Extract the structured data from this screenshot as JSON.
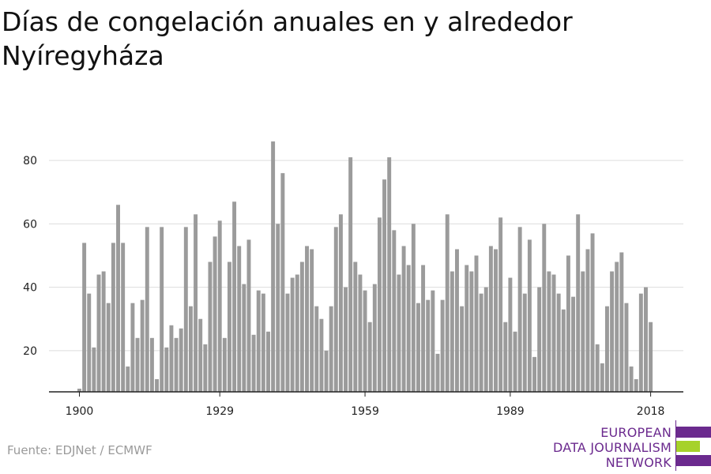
{
  "header": {
    "title": "Días de congelación anuales en y alrededor Nyíregyháza"
  },
  "footer": {
    "source": "Fuente: EDJNet / ECMWF",
    "logo_lines": [
      "EUROPEAN",
      "DATA JOURNALISM",
      "NETWORK"
    ]
  },
  "colors": {
    "bar": "#9b9b9b",
    "grid": "#dddddd",
    "axis": "#222222",
    "logo_purple": "#6b2a8e",
    "logo_green": "#a6d22a"
  },
  "chart_data": {
    "type": "bar",
    "title": "Días de congelación anuales en y alrededor Nyíregyháza",
    "xlabel": "",
    "ylabel": "",
    "x": [
      1900,
      1901,
      1902,
      1903,
      1904,
      1905,
      1906,
      1907,
      1908,
      1909,
      1910,
      1911,
      1912,
      1913,
      1914,
      1915,
      1916,
      1917,
      1918,
      1919,
      1920,
      1921,
      1922,
      1923,
      1924,
      1925,
      1926,
      1927,
      1928,
      1929,
      1930,
      1931,
      1932,
      1933,
      1934,
      1935,
      1936,
      1937,
      1938,
      1939,
      1940,
      1941,
      1942,
      1943,
      1944,
      1945,
      1946,
      1947,
      1948,
      1949,
      1950,
      1951,
      1952,
      1953,
      1954,
      1955,
      1956,
      1957,
      1958,
      1959,
      1960,
      1961,
      1962,
      1963,
      1964,
      1965,
      1966,
      1967,
      1968,
      1969,
      1970,
      1971,
      1972,
      1973,
      1974,
      1975,
      1976,
      1977,
      1978,
      1979,
      1980,
      1981,
      1982,
      1983,
      1984,
      1985,
      1986,
      1987,
      1988,
      1989,
      1990,
      1991,
      1992,
      1993,
      1994,
      1995,
      1996,
      1997,
      1998,
      1999,
      2000,
      2001,
      2002,
      2003,
      2004,
      2005,
      2006,
      2007,
      2008,
      2009,
      2010,
      2011,
      2012,
      2013,
      2014,
      2015,
      2016,
      2017,
      2018
    ],
    "values": [
      8,
      54,
      38,
      21,
      44,
      45,
      35,
      54,
      66,
      54,
      15,
      35,
      24,
      36,
      59,
      24,
      11,
      59,
      21,
      28,
      24,
      27,
      59,
      34,
      63,
      30,
      22,
      48,
      56,
      61,
      24,
      48,
      67,
      53,
      41,
      55,
      25,
      39,
      38,
      26,
      86,
      60,
      76,
      38,
      43,
      44,
      48,
      53,
      52,
      34,
      30,
      20,
      34,
      59,
      63,
      40,
      81,
      48,
      44,
      39,
      29,
      41,
      62,
      74,
      81,
      58,
      44,
      53,
      47,
      60,
      35,
      47,
      36,
      39,
      19,
      36,
      63,
      45,
      52,
      34,
      47,
      45,
      50,
      38,
      40,
      53,
      52,
      62,
      29,
      43,
      26,
      59,
      38,
      55,
      18,
      40,
      60,
      45,
      44,
      38,
      33,
      50,
      37,
      63,
      45,
      52,
      57,
      22,
      16,
      34,
      45,
      48,
      51,
      35,
      15,
      11,
      38,
      40,
      29
    ],
    "x_ticks": [
      1900,
      1929,
      1959,
      1989,
      2018
    ],
    "y_ticks": [
      20,
      40,
      60,
      80
    ],
    "ylim": [
      7,
      90
    ],
    "grid": true,
    "legend": "none"
  }
}
